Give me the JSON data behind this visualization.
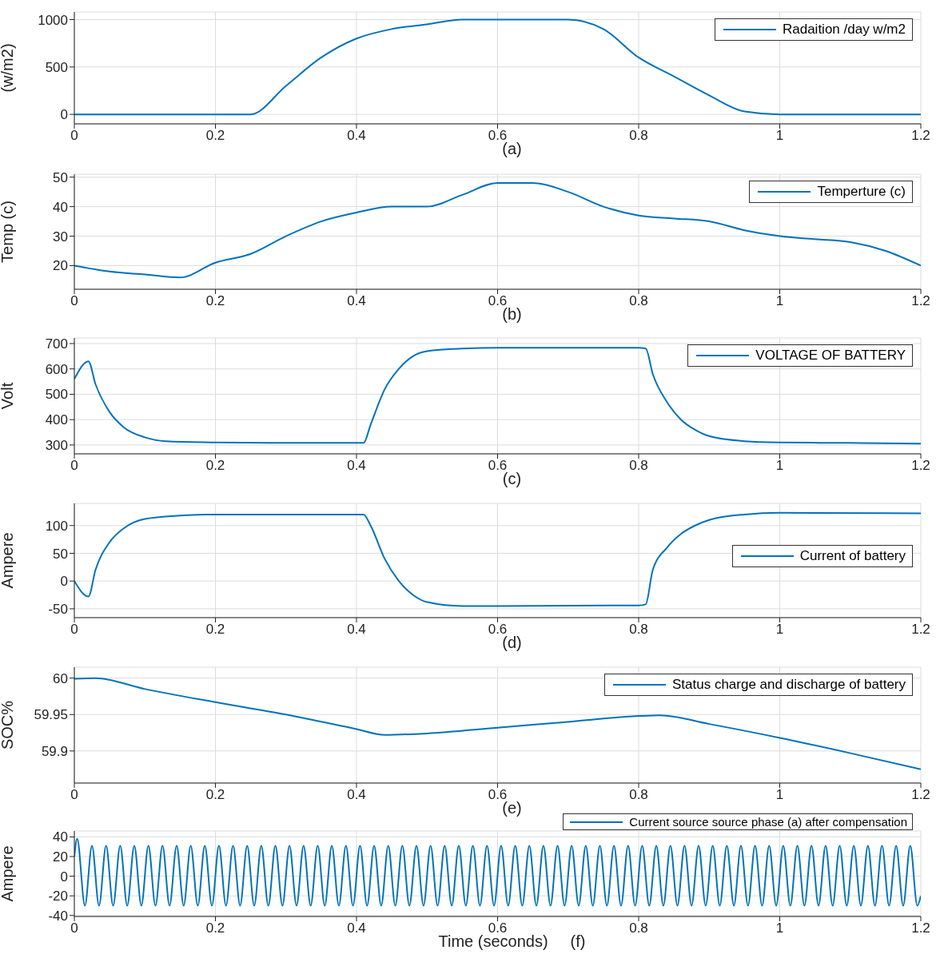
{
  "chart_data": [
    {
      "type": "line",
      "ylabel": "(w/m2)",
      "annotations": [
        "(a)"
      ],
      "grid": true,
      "legend": "top right",
      "xlim": [
        0,
        1.2
      ],
      "xticks": [
        0,
        0.2,
        0.4,
        0.6,
        0.8,
        1,
        1.2
      ],
      "ylim": [
        -100,
        1080
      ],
      "yticks": [
        0,
        500,
        1000
      ],
      "x": [
        0,
        0.25,
        0.3,
        0.35,
        0.4,
        0.45,
        0.5,
        0.55,
        0.6,
        0.65,
        0.7,
        0.75,
        0.8,
        0.85,
        0.9,
        0.95,
        1,
        1.2
      ],
      "series": [
        {
          "name": "Radaition /day w/m2",
          "color": "#0072bd",
          "values": [
            0,
            0,
            300,
            600,
            800,
            900,
            950,
            1000,
            1000,
            1000,
            1000,
            900,
            600,
            400,
            200,
            30,
            0,
            0
          ]
        }
      ]
    },
    {
      "type": "line",
      "ylabel": "Temp (c)",
      "annotations": [
        "(b)"
      ],
      "grid": true,
      "legend": "top right",
      "xlim": [
        0,
        1.2
      ],
      "xticks": [
        0,
        0.2,
        0.4,
        0.6,
        0.8,
        1,
        1.2
      ],
      "ylim": [
        12,
        51
      ],
      "yticks": [
        20,
        30,
        40,
        50
      ],
      "x": [
        0,
        0.05,
        0.1,
        0.15,
        0.2,
        0.25,
        0.3,
        0.35,
        0.4,
        0.45,
        0.5,
        0.55,
        0.6,
        0.65,
        0.7,
        0.75,
        0.8,
        0.85,
        0.9,
        0.95,
        1,
        1.05,
        1.1,
        1.15,
        1.2
      ],
      "series": [
        {
          "name": "Temperture (c)",
          "color": "#0072bd",
          "values": [
            20,
            18,
            17,
            16,
            21,
            24,
            30,
            35,
            38,
            40,
            40,
            44,
            48,
            48,
            45,
            40,
            37,
            36,
            35,
            32,
            30,
            29,
            28,
            25,
            20
          ]
        }
      ]
    },
    {
      "type": "line",
      "ylabel": "Volt",
      "annotations": [
        "(c)"
      ],
      "grid": true,
      "legend": "top right",
      "xlim": [
        0,
        1.2
      ],
      "xticks": [
        0,
        0.2,
        0.4,
        0.6,
        0.8,
        1,
        1.2
      ],
      "ylim": [
        265,
        722
      ],
      "yticks": [
        300,
        400,
        500,
        600,
        700
      ],
      "x": [
        0,
        0.02,
        0.03,
        0.05,
        0.07,
        0.1,
        0.13,
        0.2,
        0.3,
        0.41,
        0.42,
        0.44,
        0.46,
        0.48,
        0.5,
        0.55,
        0.6,
        0.7,
        0.8,
        0.81,
        0.82,
        0.84,
        0.86,
        0.88,
        0.9,
        0.95,
        1,
        1.1,
        1.2
      ],
      "series": [
        {
          "name": "VOLTAGE OF BATTERY",
          "color": "#0072bd",
          "values": [
            560,
            630,
            540,
            430,
            370,
            330,
            315,
            310,
            308,
            308,
            380,
            520,
            600,
            650,
            670,
            680,
            683,
            683,
            683,
            680,
            580,
            470,
            400,
            360,
            335,
            315,
            310,
            308,
            305
          ]
        }
      ]
    },
    {
      "type": "line",
      "ylabel": "Ampere",
      "annotations": [
        "(d)"
      ],
      "grid": true,
      "legend": "right",
      "xlim": [
        0,
        1.2
      ],
      "xticks": [
        0,
        0.2,
        0.4,
        0.6,
        0.8,
        1,
        1.2
      ],
      "ylim": [
        -66,
        140
      ],
      "yticks": [
        -50,
        0,
        50,
        100
      ],
      "x": [
        0,
        0.02,
        0.03,
        0.05,
        0.07,
        0.1,
        0.15,
        0.2,
        0.41,
        0.42,
        0.44,
        0.46,
        0.48,
        0.5,
        0.55,
        0.6,
        0.8,
        0.81,
        0.82,
        0.84,
        0.86,
        0.88,
        0.9,
        0.95,
        1,
        1.2
      ],
      "series": [
        {
          "name": "Current of battery",
          "color": "#0072bd",
          "values": [
            0,
            -28,
            20,
            70,
            95,
            112,
            118,
            120,
            120,
            100,
            40,
            0,
            -25,
            -38,
            -45,
            -45,
            -44,
            -42,
            20,
            60,
            85,
            100,
            110,
            120,
            123,
            122
          ]
        }
      ]
    },
    {
      "type": "line",
      "ylabel": "SOC%",
      "annotations": [
        "(e)"
      ],
      "grid": true,
      "legend": "top right",
      "xlim": [
        0,
        1.2
      ],
      "xticks": [
        0,
        0.2,
        0.4,
        0.6,
        0.8,
        1,
        1.2
      ],
      "ylim": [
        59.856,
        60.015
      ],
      "yticks": [
        59.9,
        59.95,
        60
      ],
      "x": [
        0,
        0.03,
        0.1,
        0.2,
        0.3,
        0.4,
        0.44,
        0.5,
        0.6,
        0.7,
        0.8,
        0.83,
        0.9,
        1,
        1.1,
        1.2
      ],
      "series": [
        {
          "name": "Status charge and discharge of battery",
          "color": "#0072bd",
          "values": [
            59.999,
            60,
            59.985,
            59.967,
            59.95,
            59.93,
            59.922,
            59.924,
            59.932,
            59.94,
            59.948,
            59.949,
            59.937,
            59.918,
            59.897,
            59.875
          ]
        }
      ]
    },
    {
      "type": "line",
      "ylabel": "Ampere",
      "xlabel": "Time (seconds)",
      "annotations": [
        "(f)"
      ],
      "grid": true,
      "legend": "top right",
      "xlim": [
        0,
        1.2
      ],
      "xticks": [
        0,
        0.2,
        0.4,
        0.6,
        0.8,
        1,
        1.2
      ],
      "ylim": [
        -41,
        46
      ],
      "yticks": [
        -40,
        -20,
        0,
        20,
        40
      ],
      "x": [
        0,
        0.004,
        0.015,
        0.025,
        0.035,
        0.045,
        0.055,
        0.065,
        0.075,
        0.085,
        0.095,
        0.105,
        0.115,
        0.125,
        0.135,
        0.145,
        0.155,
        0.165,
        0.175,
        0.185,
        0.195,
        0.205,
        0.215,
        0.225,
        0.235,
        0.245,
        0.255,
        0.265,
        0.275,
        0.285,
        0.295,
        0.305,
        0.315,
        0.325,
        0.335,
        0.345,
        0.355,
        0.365,
        0.375,
        0.385,
        0.395,
        0.405,
        0.415,
        0.425,
        0.435,
        0.445,
        0.455,
        0.465,
        0.475,
        0.485,
        0.495,
        0.505,
        0.515,
        0.525,
        0.535,
        0.545,
        0.555,
        0.565,
        0.575,
        0.585,
        0.595,
        0.605,
        0.615,
        0.625,
        0.635,
        0.645,
        0.655,
        0.665,
        0.675,
        0.685,
        0.695,
        0.705,
        0.715,
        0.725,
        0.735,
        0.745,
        0.755,
        0.765,
        0.775,
        0.785,
        0.795,
        0.805,
        0.815,
        0.825,
        0.835,
        0.845,
        0.855,
        0.865,
        0.875,
        0.885,
        0.895,
        0.905,
        0.915,
        0.925,
        0.935,
        0.945,
        0.955,
        0.965,
        0.975,
        0.985,
        0.995,
        1.005,
        1.015,
        1.025,
        1.035,
        1.045,
        1.055,
        1.065,
        1.075,
        1.085,
        1.095,
        1.105,
        1.115,
        1.125,
        1.135,
        1.145,
        1.155,
        1.165,
        1.175,
        1.185,
        1.195,
        1.2
      ],
      "series": [
        {
          "name": "Current source source phase (a) after compensation",
          "color": "#0072bd",
          "values": [
            20,
            38,
            -30,
            31,
            -30,
            31,
            -30,
            31,
            -30,
            31,
            -30,
            31,
            -30,
            31,
            -30,
            31,
            -30,
            31,
            -30,
            31,
            -30,
            31,
            -30,
            31,
            -30,
            31,
            -30,
            31,
            -30,
            31,
            -30,
            31,
            -30,
            31,
            -30,
            31,
            -30,
            31,
            -30,
            31,
            -30,
            31,
            -30,
            31,
            -30,
            31,
            -30,
            31,
            -30,
            31,
            -30,
            31,
            -30,
            31,
            -30,
            31,
            -30,
            31,
            -30,
            31,
            -30,
            31,
            -30,
            31,
            -30,
            31,
            -30,
            31,
            -30,
            31,
            -30,
            31,
            -30,
            31,
            -30,
            31,
            -30,
            31,
            -30,
            31,
            -30,
            31,
            -30,
            31,
            -30,
            31,
            -30,
            31,
            -30,
            31,
            -30,
            31,
            -30,
            31,
            -30,
            31,
            -30,
            31,
            -30,
            31,
            -30,
            31,
            -30,
            31,
            -30,
            31,
            -30,
            31,
            -30,
            31,
            -30,
            31,
            -30,
            31,
            -30,
            31,
            -30,
            31,
            -30,
            31,
            -30,
            -20
          ]
        }
      ]
    }
  ]
}
